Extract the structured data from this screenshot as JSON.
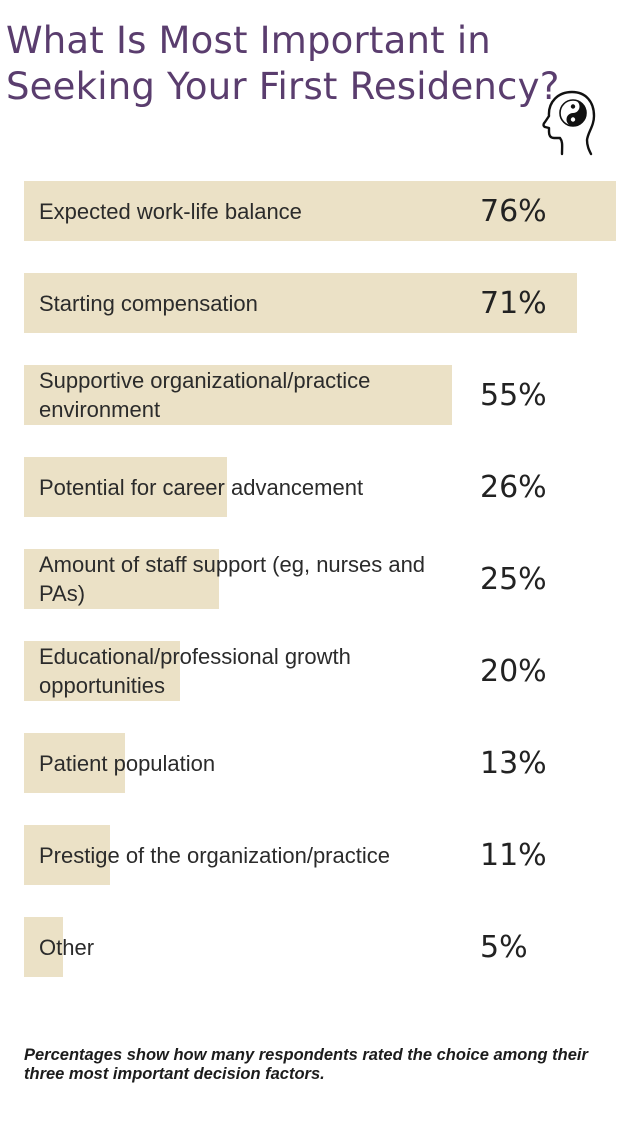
{
  "title": "What Is Most Important in Seeking Your First Residency?",
  "icon": "head-yin-yang-icon",
  "chart_data": {
    "type": "bar",
    "orientation": "horizontal",
    "title": "What Is Most Important in Seeking Your First Residency?",
    "xlim": [
      0,
      76
    ],
    "categories": [
      "Expected work-life balance",
      "Starting compensation",
      "Supportive organizational/practice environment",
      "Potential for career advancement",
      "Amount of staff support (eg, nurses and PAs)",
      "Educational/professional growth opportunities",
      "Patient population",
      "Prestige of the organization/practice",
      "Other"
    ],
    "values": [
      76,
      71,
      55,
      26,
      25,
      20,
      13,
      11,
      5
    ],
    "value_labels": [
      "76%",
      "71%",
      "55%",
      "26%",
      "25%",
      "20%",
      "13%",
      "11%",
      "5%"
    ],
    "bar_color": "#ebe1c6",
    "grid": false
  },
  "footnote": "Percentages show how many respondents rated the choice among their three most important decision factors.",
  "colors": {
    "title": "#5a3d6e",
    "bar": "#ebe1c6",
    "text": "#2b2b2b"
  }
}
